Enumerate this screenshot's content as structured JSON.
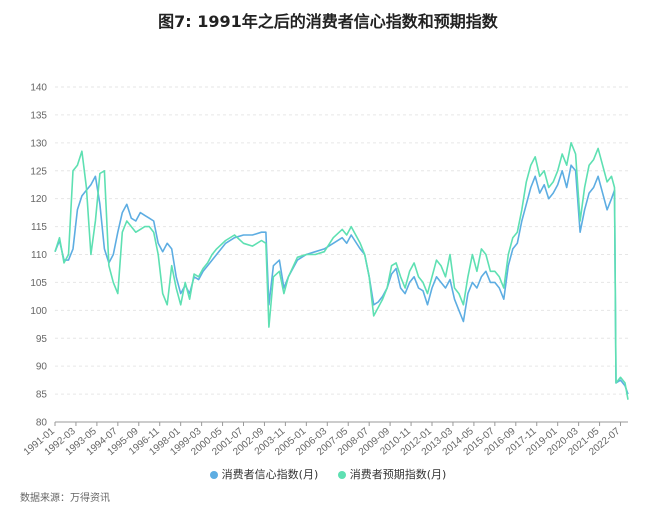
{
  "chart_data": {
    "type": "line",
    "title": "图7: 1991年之后的消费者信心指数和预期指数",
    "source": "数据来源：万得资讯",
    "ylim": [
      80,
      140
    ],
    "yticks": [
      80,
      85,
      90,
      95,
      100,
      105,
      110,
      115,
      120,
      125,
      130,
      135,
      140
    ],
    "grid": "horizontal dashed",
    "legend_position": "bottom",
    "xlabels": [
      "1991-01",
      "1992-03",
      "1993-05",
      "1994-07",
      "1995-09",
      "1996-11",
      "1998-01",
      "1999-03",
      "2000-05",
      "2001-07",
      "2002-09",
      "2003-11",
      "2005-01",
      "2006-03",
      "2007-05",
      "2008-07",
      "2009-09",
      "2010-11",
      "2012-01",
      "2013-03",
      "2014-05",
      "2015-07",
      "2016-09",
      "2017-11",
      "2019-01",
      "2020-03",
      "2021-05",
      "2022-07"
    ],
    "x_range": [
      "1991-01",
      "2022-12"
    ],
    "series": [
      {
        "name": "消费者信心指数(月)",
        "color": "#5dade2",
        "points": [
          [
            "1991-01",
            110.5
          ],
          [
            "1991-04",
            112.5
          ],
          [
            "1991-07",
            109
          ],
          [
            "1991-10",
            109
          ],
          [
            "1992-01",
            111
          ],
          [
            "1992-04",
            118
          ],
          [
            "1992-07",
            120.5
          ],
          [
            "1992-10",
            121.5
          ],
          [
            "1993-01",
            122.5
          ],
          [
            "1993-04",
            124
          ],
          [
            "1993-07",
            119
          ],
          [
            "1993-10",
            111
          ],
          [
            "1994-01",
            108.5
          ],
          [
            "1994-04",
            110
          ],
          [
            "1994-07",
            114
          ],
          [
            "1994-10",
            117.5
          ],
          [
            "1995-01",
            119
          ],
          [
            "1995-04",
            116.5
          ],
          [
            "1995-07",
            116
          ],
          [
            "1995-10",
            117.5
          ],
          [
            "1996-01",
            117
          ],
          [
            "1996-04",
            116.5
          ],
          [
            "1996-07",
            116
          ],
          [
            "1996-10",
            112
          ],
          [
            "1997-01",
            110.5
          ],
          [
            "1997-04",
            112
          ],
          [
            "1997-07",
            111
          ],
          [
            "1997-10",
            106
          ],
          [
            "1998-01",
            103
          ],
          [
            "1998-04",
            104.5
          ],
          [
            "1998-07",
            103
          ],
          [
            "1998-10",
            106
          ],
          [
            "1999-01",
            105.5
          ],
          [
            "1999-04",
            107
          ],
          [
            "1999-07",
            108
          ],
          [
            "1999-10",
            109
          ],
          [
            "2000-01",
            110
          ],
          [
            "2000-07",
            112
          ],
          [
            "2001-01",
            113
          ],
          [
            "2001-07",
            113.5
          ],
          [
            "2002-01",
            113.5
          ],
          [
            "2002-07",
            114
          ],
          [
            "2002-10",
            114
          ],
          [
            "2002-12",
            101
          ],
          [
            "2003-03",
            108
          ],
          [
            "2003-07",
            109
          ],
          [
            "2003-10",
            104
          ],
          [
            "2004-01",
            106
          ],
          [
            "2004-07",
            109
          ],
          [
            "2005-01",
            110
          ],
          [
            "2005-07",
            110.5
          ],
          [
            "2006-01",
            111
          ],
          [
            "2006-07",
            112
          ],
          [
            "2007-01",
            113
          ],
          [
            "2007-04",
            112
          ],
          [
            "2007-07",
            113.5
          ],
          [
            "2008-01",
            111
          ],
          [
            "2008-04",
            110
          ],
          [
            "2008-07",
            106
          ],
          [
            "2008-10",
            101
          ],
          [
            "2009-01",
            101.5
          ],
          [
            "2009-04",
            102.5
          ],
          [
            "2009-07",
            104
          ],
          [
            "2009-10",
            106.5
          ],
          [
            "2010-01",
            107.5
          ],
          [
            "2010-04",
            104
          ],
          [
            "2010-07",
            103
          ],
          [
            "2010-10",
            105
          ],
          [
            "2011-01",
            106
          ],
          [
            "2011-04",
            104
          ],
          [
            "2011-07",
            103.5
          ],
          [
            "2011-10",
            101
          ],
          [
            "2012-01",
            104
          ],
          [
            "2012-04",
            106
          ],
          [
            "2012-07",
            105
          ],
          [
            "2012-10",
            104
          ],
          [
            "2013-01",
            105.5
          ],
          [
            "2013-04",
            102
          ],
          [
            "2013-07",
            100
          ],
          [
            "2013-10",
            98
          ],
          [
            "2014-01",
            103
          ],
          [
            "2014-04",
            105
          ],
          [
            "2014-07",
            104
          ],
          [
            "2014-10",
            106
          ],
          [
            "2015-01",
            107
          ],
          [
            "2015-04",
            105
          ],
          [
            "2015-07",
            105
          ],
          [
            "2015-10",
            104
          ],
          [
            "2016-01",
            102
          ],
          [
            "2016-04",
            108
          ],
          [
            "2016-07",
            111
          ],
          [
            "2016-10",
            112
          ],
          [
            "2017-01",
            116
          ],
          [
            "2017-04",
            119
          ],
          [
            "2017-07",
            122
          ],
          [
            "2017-10",
            124
          ],
          [
            "2018-01",
            121
          ],
          [
            "2018-04",
            122.5
          ],
          [
            "2018-07",
            120
          ],
          [
            "2018-10",
            121
          ],
          [
            "2019-01",
            122.5
          ],
          [
            "2019-04",
            125
          ],
          [
            "2019-07",
            122
          ],
          [
            "2019-10",
            126
          ],
          [
            "2020-01",
            125
          ],
          [
            "2020-04",
            114
          ],
          [
            "2020-07",
            118
          ],
          [
            "2020-10",
            121
          ],
          [
            "2021-01",
            122
          ],
          [
            "2021-04",
            124
          ],
          [
            "2021-07",
            121
          ],
          [
            "2021-10",
            118
          ],
          [
            "2022-01",
            120
          ],
          [
            "2022-03",
            121.5
          ],
          [
            "2022-04",
            87
          ],
          [
            "2022-07",
            87.5
          ],
          [
            "2022-10",
            86.5
          ],
          [
            "2022-12",
            85
          ]
        ]
      },
      {
        "name": "消费者预期指数(月)",
        "color": "#5ee0b2",
        "points": [
          [
            "1991-01",
            110.5
          ],
          [
            "1991-04",
            113
          ],
          [
            "1991-07",
            108.5
          ],
          [
            "1991-10",
            110
          ],
          [
            "1992-01",
            125
          ],
          [
            "1992-04",
            126
          ],
          [
            "1992-07",
            128.5
          ],
          [
            "1992-10",
            122
          ],
          [
            "1993-01",
            110
          ],
          [
            "1993-04",
            116
          ],
          [
            "1993-07",
            124.5
          ],
          [
            "1993-10",
            125
          ],
          [
            "1994-01",
            108
          ],
          [
            "1994-04",
            105
          ],
          [
            "1994-07",
            103
          ],
          [
            "1994-10",
            114
          ],
          [
            "1995-01",
            116
          ],
          [
            "1995-04",
            115
          ],
          [
            "1995-07",
            114
          ],
          [
            "1995-10",
            114.5
          ],
          [
            "1996-01",
            115
          ],
          [
            "1996-04",
            115
          ],
          [
            "1996-07",
            114
          ],
          [
            "1996-10",
            110
          ],
          [
            "1997-01",
            103
          ],
          [
            "1997-04",
            101
          ],
          [
            "1997-07",
            108
          ],
          [
            "1997-10",
            104
          ],
          [
            "1998-01",
            101
          ],
          [
            "1998-04",
            105
          ],
          [
            "1998-07",
            102
          ],
          [
            "1998-10",
            106.5
          ],
          [
            "1999-01",
            106
          ],
          [
            "1999-04",
            107.5
          ],
          [
            "1999-07",
            108.5
          ],
          [
            "1999-10",
            110
          ],
          [
            "2000-01",
            111
          ],
          [
            "2000-07",
            112.5
          ],
          [
            "2001-01",
            113.5
          ],
          [
            "2001-07",
            112
          ],
          [
            "2002-01",
            111.5
          ],
          [
            "2002-07",
            112.5
          ],
          [
            "2002-10",
            112
          ],
          [
            "2002-12",
            97
          ],
          [
            "2003-03",
            106
          ],
          [
            "2003-07",
            107
          ],
          [
            "2003-10",
            103
          ],
          [
            "2004-01",
            106
          ],
          [
            "2004-07",
            109.5
          ],
          [
            "2005-01",
            110
          ],
          [
            "2005-07",
            110
          ],
          [
            "2006-01",
            110.5
          ],
          [
            "2006-07",
            113
          ],
          [
            "2007-01",
            114.5
          ],
          [
            "2007-04",
            113.5
          ],
          [
            "2007-07",
            115
          ],
          [
            "2008-01",
            112
          ],
          [
            "2008-04",
            110
          ],
          [
            "2008-07",
            106
          ],
          [
            "2008-10",
            99
          ],
          [
            "2009-01",
            100.5
          ],
          [
            "2009-04",
            102
          ],
          [
            "2009-07",
            104
          ],
          [
            "2009-10",
            108
          ],
          [
            "2010-01",
            108.5
          ],
          [
            "2010-04",
            106
          ],
          [
            "2010-07",
            104
          ],
          [
            "2010-10",
            107
          ],
          [
            "2011-01",
            108.5
          ],
          [
            "2011-04",
            106
          ],
          [
            "2011-07",
            105
          ],
          [
            "2011-10",
            103
          ],
          [
            "2012-01",
            106
          ],
          [
            "2012-04",
            109
          ],
          [
            "2012-07",
            108
          ],
          [
            "2012-10",
            106
          ],
          [
            "2013-01",
            110
          ],
          [
            "2013-04",
            104
          ],
          [
            "2013-07",
            103
          ],
          [
            "2013-10",
            101
          ],
          [
            "2014-01",
            106
          ],
          [
            "2014-04",
            110
          ],
          [
            "2014-07",
            107
          ],
          [
            "2014-10",
            111
          ],
          [
            "2015-01",
            110
          ],
          [
            "2015-04",
            107
          ],
          [
            "2015-07",
            107
          ],
          [
            "2015-10",
            106
          ],
          [
            "2016-01",
            104
          ],
          [
            "2016-04",
            110
          ],
          [
            "2016-07",
            113
          ],
          [
            "2016-10",
            114
          ],
          [
            "2017-01",
            118
          ],
          [
            "2017-04",
            123
          ],
          [
            "2017-07",
            126
          ],
          [
            "2017-10",
            127.5
          ],
          [
            "2018-01",
            124
          ],
          [
            "2018-04",
            125
          ],
          [
            "2018-07",
            122
          ],
          [
            "2018-10",
            123
          ],
          [
            "2019-01",
            125
          ],
          [
            "2019-04",
            128
          ],
          [
            "2019-07",
            126
          ],
          [
            "2019-10",
            130
          ],
          [
            "2020-01",
            128
          ],
          [
            "2020-04",
            116
          ],
          [
            "2020-07",
            122
          ],
          [
            "2020-10",
            126
          ],
          [
            "2021-01",
            127
          ],
          [
            "2021-04",
            129
          ],
          [
            "2021-07",
            126
          ],
          [
            "2021-10",
            123
          ],
          [
            "2022-01",
            124
          ],
          [
            "2022-03",
            122
          ],
          [
            "2022-04",
            87
          ],
          [
            "2022-07",
            88
          ],
          [
            "2022-10",
            87
          ],
          [
            "2022-12",
            84
          ]
        ]
      }
    ]
  }
}
